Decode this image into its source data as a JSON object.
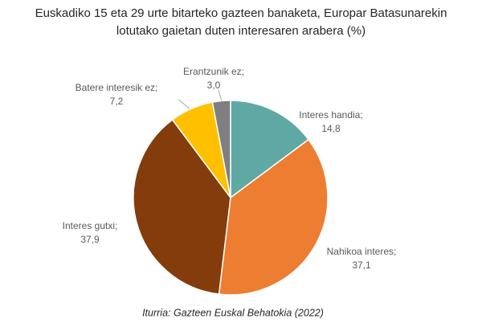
{
  "chart_data": {
    "type": "pie",
    "title": "Euskadiko 15 eta 29 urte bitarteko gazteen banaketa, Europar Batasunarekin lotutako gaietan duten interesaren arabera (%)",
    "categories": [
      "Interes handia;",
      "Nahikoa interes;",
      "Interes gutxi;",
      "Batere interesik ez;",
      "Erantzunik ez;"
    ],
    "values": [
      14.8,
      37.1,
      37.9,
      7.2,
      3.0
    ],
    "value_labels": [
      "14,8",
      "37,1",
      "37,9",
      "7,2",
      "3,0"
    ],
    "colors": [
      "#5fa8a3",
      "#ed7d31",
      "#843c0c",
      "#ffc000",
      "#7f7f7f"
    ],
    "source": "Iturria: Gazteen Euskal Behatokia (2022)"
  }
}
